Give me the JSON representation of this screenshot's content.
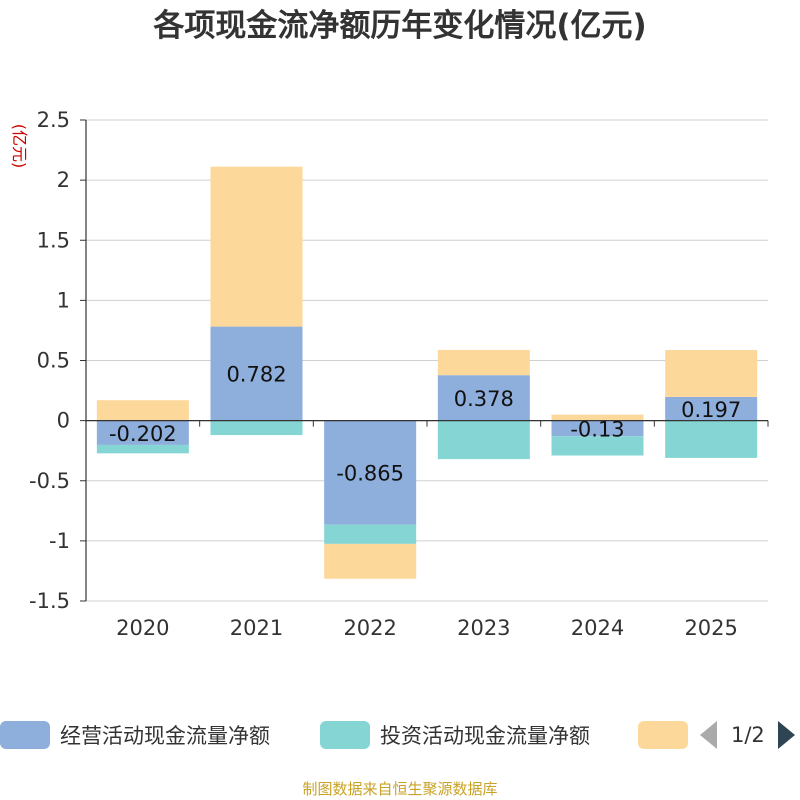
{
  "chart_data": {
    "type": "bar",
    "stacked": true,
    "title": "各项现金流净额历年变化情况(亿元)",
    "ylabel": "(亿元)",
    "xlabel": "",
    "categories": [
      "2020",
      "2021",
      "2022",
      "2023",
      "2024",
      "2025"
    ],
    "series": [
      {
        "name": "经营活动现金流量净额",
        "color": "#8eaedc",
        "values": [
          -0.202,
          0.782,
          -0.865,
          0.378,
          -0.13,
          0.197
        ],
        "labels": [
          "-0.202",
          "0.782",
          "-0.865",
          "0.378",
          "-0.13",
          "0.197"
        ]
      },
      {
        "name": "投资活动现金流量净额",
        "color": "#86d5d5",
        "values": [
          -0.07,
          -0.12,
          -0.16,
          -0.32,
          -0.16,
          -0.31
        ]
      },
      {
        "name": "",
        "color": "#fdd89b",
        "values": [
          0.17,
          1.33,
          -0.29,
          0.21,
          0.05,
          0.39
        ]
      }
    ],
    "ylim": [
      -1.5,
      2.5
    ],
    "yticks": [
      -1.5,
      -1,
      -0.5,
      0,
      0.5,
      1,
      1.5,
      2,
      2.5
    ],
    "ytick_labels": [
      "-1.5",
      "-1",
      "-0.5",
      "0",
      "0.5",
      "1",
      "1.5",
      "2",
      "2.5"
    ],
    "grid": true,
    "legend_position": "bottom"
  },
  "legend": {
    "page_indicator": "1/2"
  },
  "source": "制图数据来自恒生聚源数据库"
}
